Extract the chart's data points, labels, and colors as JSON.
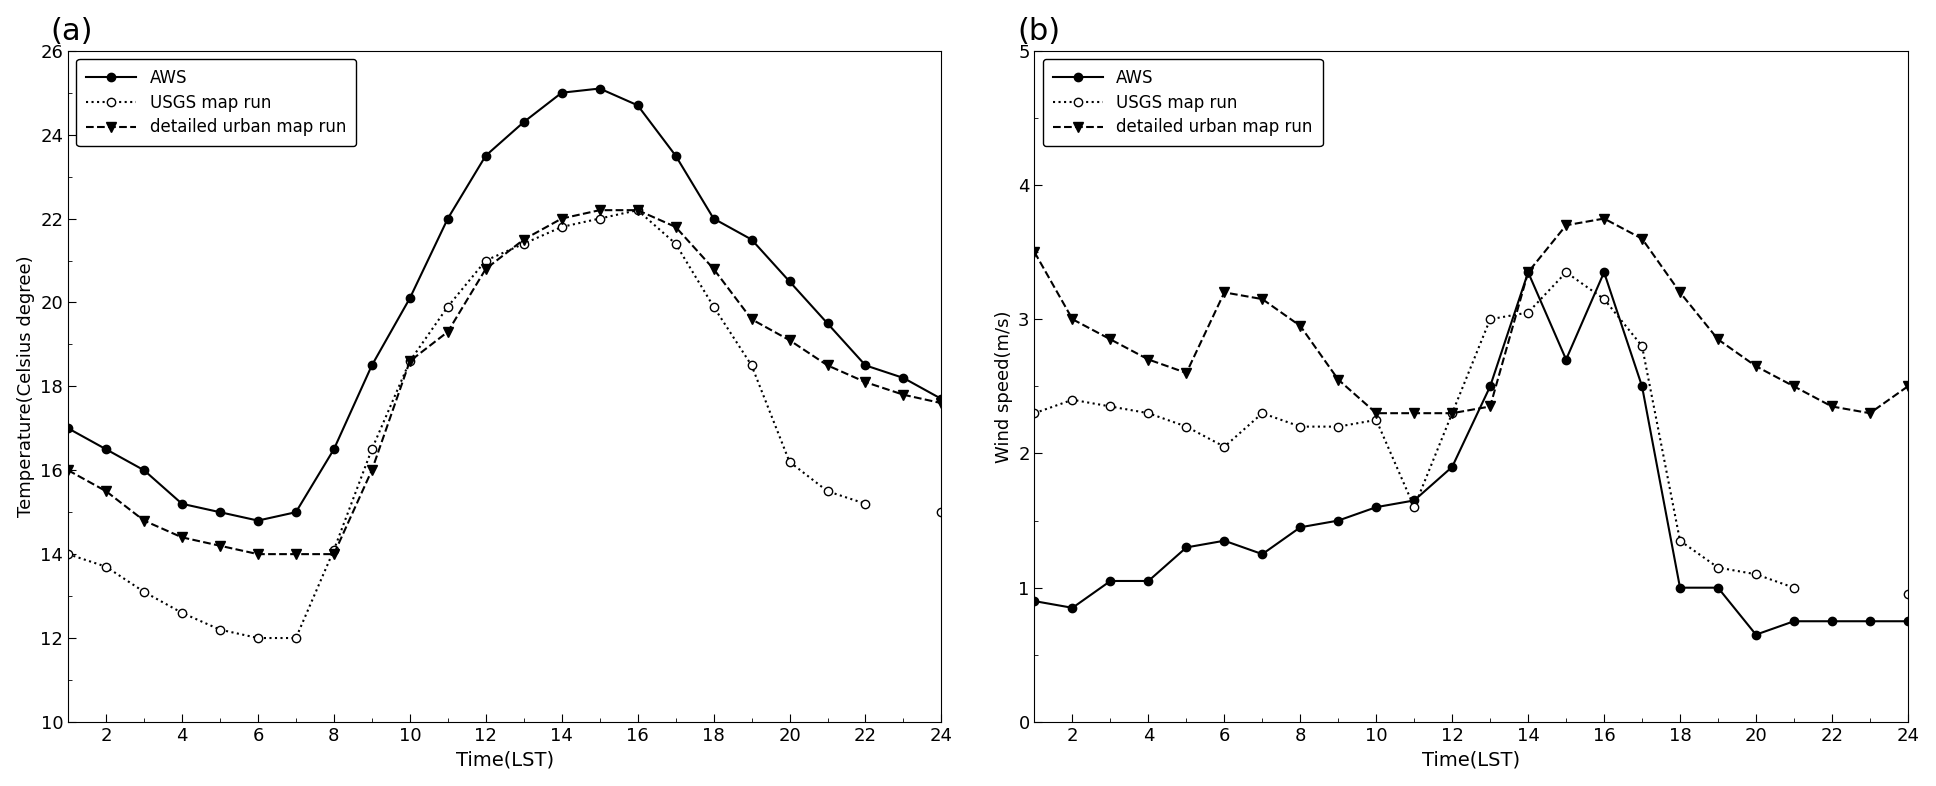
{
  "time": [
    1,
    2,
    3,
    4,
    5,
    6,
    7,
    8,
    9,
    10,
    11,
    12,
    13,
    14,
    15,
    16,
    17,
    18,
    19,
    20,
    21,
    22,
    23,
    24
  ],
  "temp_aws": [
    17.0,
    16.5,
    16.0,
    15.2,
    15.0,
    14.8,
    15.0,
    16.5,
    18.5,
    20.1,
    22.0,
    23.5,
    24.3,
    25.0,
    25.1,
    24.7,
    23.5,
    22.0,
    21.5,
    20.5,
    19.5,
    18.5,
    18.2,
    17.7
  ],
  "temp_usgs": [
    14.0,
    13.7,
    13.1,
    12.6,
    12.2,
    12.0,
    12.0,
    14.1,
    16.5,
    18.6,
    19.9,
    21.0,
    21.4,
    21.8,
    22.0,
    22.2,
    21.4,
    19.9,
    18.5,
    16.2,
    15.5,
    15.2,
    null,
    15.0
  ],
  "temp_urban": [
    16.0,
    15.5,
    14.8,
    14.4,
    14.2,
    14.0,
    14.0,
    14.0,
    16.0,
    18.6,
    19.3,
    20.8,
    21.5,
    22.0,
    22.2,
    22.2,
    21.8,
    20.8,
    19.6,
    19.1,
    18.5,
    18.1,
    17.8,
    17.6
  ],
  "wind_aws": [
    0.9,
    0.85,
    1.05,
    1.05,
    1.3,
    1.35,
    1.25,
    1.45,
    1.5,
    1.6,
    1.65,
    1.9,
    2.5,
    3.35,
    2.7,
    3.35,
    2.5,
    1.0,
    1.0,
    0.65,
    0.75,
    0.75,
    0.75,
    0.75
  ],
  "wind_usgs": [
    2.3,
    2.4,
    2.35,
    2.3,
    2.2,
    2.05,
    2.3,
    2.2,
    2.2,
    2.25,
    1.6,
    2.3,
    3.0,
    3.05,
    3.35,
    3.15,
    2.8,
    1.35,
    1.15,
    1.1,
    1.0,
    null,
    null,
    0.95
  ],
  "wind_urban": [
    3.5,
    3.0,
    2.85,
    2.7,
    2.6,
    3.2,
    3.15,
    2.95,
    2.55,
    2.3,
    2.3,
    2.3,
    2.35,
    3.35,
    3.7,
    3.75,
    3.6,
    3.2,
    2.85,
    2.65,
    2.5,
    2.35,
    2.3,
    2.5
  ],
  "panel_a_label": "(a)",
  "panel_b_label": "(b)",
  "ylabel_a": "Temperature(Celsius degree)",
  "ylabel_b": "Wind speed(m/s)",
  "xlabel": "Time(LST)",
  "legend_aws": "AWS",
  "legend_usgs": "USGS map run",
  "legend_urban": "detailed urban map run",
  "ylim_a": [
    10,
    26
  ],
  "ylim_b": [
    0,
    5
  ],
  "yticks_a": [
    10,
    12,
    14,
    16,
    18,
    20,
    22,
    24,
    26
  ],
  "yticks_b": [
    0,
    1,
    2,
    3,
    4,
    5
  ],
  "xticks": [
    2,
    4,
    6,
    8,
    10,
    12,
    14,
    16,
    18,
    20,
    22,
    24
  ],
  "xlim": [
    1,
    24
  ]
}
